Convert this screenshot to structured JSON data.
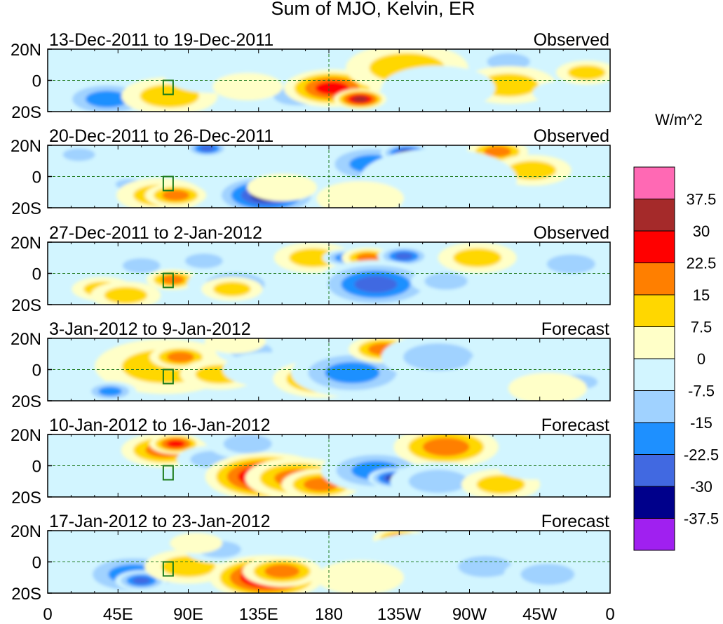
{
  "chart_data": {
    "type": "heatmap",
    "title": "Sum of MJO, Kelvin, ER",
    "colorbar": {
      "units": "W/m^2",
      "colors": [
        "#a020f0",
        "#00008b",
        "#4169e1",
        "#1e90ff",
        "#a0d2ff",
        "#d2f5ff",
        "#ffffc8",
        "#ffd700",
        "#ff7f00",
        "#ff0000",
        "#a52a2a",
        "#ff69b4"
      ],
      "tick_labels": [
        "-37.5",
        "-30",
        "-22.5",
        "-15",
        "-7.5",
        "0",
        "7.5",
        "15",
        "22.5",
        "30",
        "37.5"
      ]
    },
    "x_ticks": [
      "0",
      "45E",
      "90E",
      "135E",
      "180",
      "135W",
      "90W",
      "45W",
      "0"
    ],
    "y_ticks": [
      "20N",
      "0",
      "20S"
    ],
    "panels": [
      {
        "date_range": "13-Dec-2011 to 19-Dec-2011",
        "status": "Observed",
        "blobs": [
          [
            52,
            -7,
            6,
            -20
          ],
          [
            38,
            -12,
            22,
            -20
          ],
          [
            78,
            -10,
            22,
            15
          ],
          [
            105,
            4,
            22,
            -10
          ],
          [
            160,
            -10,
            18,
            -15
          ],
          [
            182,
            -5,
            22,
            30
          ],
          [
            200,
            -12,
            12,
            40
          ],
          [
            230,
            8,
            28,
            18
          ],
          [
            295,
            12,
            16,
            -15
          ],
          [
            295,
            -3,
            22,
            12
          ],
          [
            330,
            -8,
            14,
            -10
          ],
          [
            250,
            -5,
            26,
            -8
          ],
          [
            345,
            5,
            14,
            12
          ],
          [
            128,
            -4,
            16,
            10
          ]
        ]
      },
      {
        "date_range": "20-Dec-2011 to 26-Dec-2011",
        "status": "Observed",
        "blobs": [
          [
            52,
            -5,
            10,
            -18
          ],
          [
            72,
            -12,
            20,
            15
          ],
          [
            82,
            -12,
            14,
            22
          ],
          [
            108,
            8,
            16,
            -10
          ],
          [
            102,
            18,
            10,
            -30
          ],
          [
            140,
            -12,
            25,
            -35
          ],
          [
            150,
            -7,
            16,
            10
          ],
          [
            208,
            8,
            24,
            -25
          ],
          [
            230,
            15,
            12,
            -35
          ],
          [
            288,
            16,
            14,
            22
          ],
          [
            310,
            4,
            18,
            15
          ],
          [
            250,
            -2,
            36,
            -8
          ],
          [
            200,
            -14,
            20,
            10
          ],
          [
            20,
            14,
            12,
            -15
          ]
        ]
      },
      {
        "date_range": "27-Dec-2011 to 2-Jan-2012",
        "status": "Observed",
        "blobs": [
          [
            35,
            -10,
            14,
            15
          ],
          [
            60,
            5,
            14,
            -18
          ],
          [
            80,
            -4,
            12,
            22
          ],
          [
            100,
            8,
            14,
            -18
          ],
          [
            120,
            -7,
            22,
            -12
          ],
          [
            118,
            -10,
            14,
            15
          ],
          [
            170,
            10,
            18,
            12
          ],
          [
            190,
            10,
            10,
            -25
          ],
          [
            205,
            10,
            12,
            25
          ],
          [
            228,
            11,
            12,
            -28
          ],
          [
            210,
            -7,
            28,
            -28
          ],
          [
            255,
            -5,
            16,
            -15
          ],
          [
            275,
            10,
            18,
            12
          ],
          [
            335,
            6,
            18,
            -18
          ],
          [
            50,
            -14,
            16,
            12
          ]
        ]
      },
      {
        "date_range": "3-Jan-2012 to 9-Jan-2012",
        "status": "Forecast",
        "blobs": [
          [
            75,
            2,
            32,
            18
          ],
          [
            85,
            8,
            14,
            22
          ],
          [
            110,
            -3,
            18,
            15
          ],
          [
            130,
            12,
            16,
            -12
          ],
          [
            140,
            0,
            20,
            -10
          ],
          [
            175,
            -6,
            22,
            20
          ],
          [
            195,
            -2,
            28,
            -25
          ],
          [
            215,
            13,
            16,
            25
          ],
          [
            250,
            8,
            26,
            -12
          ],
          [
            300,
            3,
            22,
            -10
          ],
          [
            40,
            -14,
            12,
            -22
          ],
          [
            340,
            -8,
            14,
            -12
          ],
          [
            320,
            -12,
            18,
            10
          ],
          [
            120,
            18,
            14,
            10
          ]
        ]
      },
      {
        "date_range": "10-Jan-2012 to 16-Jan-2012",
        "status": "Forecast",
        "blobs": [
          [
            75,
            10,
            20,
            22
          ],
          [
            82,
            14,
            12,
            28
          ],
          [
            105,
            4,
            16,
            -15
          ],
          [
            128,
            14,
            18,
            -12
          ],
          [
            140,
            -7,
            28,
            38
          ],
          [
            160,
            -8,
            24,
            25
          ],
          [
            175,
            -12,
            18,
            25
          ],
          [
            210,
            -3,
            25,
            -22
          ],
          [
            222,
            -8,
            12,
            -35
          ],
          [
            255,
            12,
            24,
            22
          ],
          [
            250,
            -10,
            22,
            -12
          ],
          [
            290,
            -12,
            18,
            12
          ],
          [
            310,
            0,
            16,
            -10
          ],
          [
            50,
            -6,
            14,
            -10
          ]
        ]
      },
      {
        "date_range": "17-Jan-2012 to 23-Jan-2012",
        "status": "Forecast",
        "blobs": [
          [
            55,
            -8,
            26,
            -22
          ],
          [
            60,
            -12,
            12,
            -30
          ],
          [
            90,
            -3,
            20,
            15
          ],
          [
            110,
            8,
            16,
            -12
          ],
          [
            140,
            -10,
            26,
            38
          ],
          [
            150,
            -6,
            18,
            20
          ],
          [
            180,
            12,
            20,
            -10
          ],
          [
            225,
            15,
            12,
            22
          ],
          [
            240,
            2,
            30,
            -10
          ],
          [
            280,
            -3,
            20,
            -15
          ],
          [
            320,
            -8,
            20,
            -18
          ],
          [
            200,
            -10,
            20,
            10
          ],
          [
            30,
            10,
            16,
            -8
          ],
          [
            95,
            12,
            12,
            10
          ]
        ]
      }
    ]
  }
}
